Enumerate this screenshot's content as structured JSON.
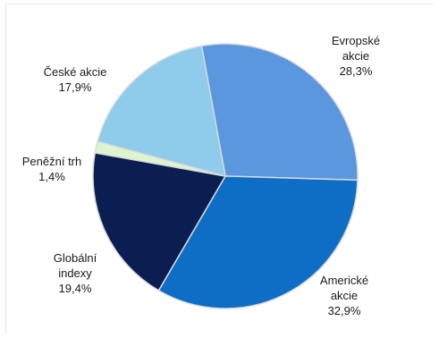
{
  "chart_data": {
    "type": "pie",
    "start_angle_deg": -10.3,
    "direction": "clockwise",
    "slices": [
      {
        "label_lines": [
          "Evropské",
          "akcie",
          "28,3%"
        ],
        "value": 28.3,
        "color": "#5A97DE"
      },
      {
        "label_lines": [
          "Americké",
          "akcie",
          "32,9%"
        ],
        "value": 32.9,
        "color": "#0E6EC6"
      },
      {
        "label_lines": [
          "Globální",
          "indexy",
          "19,4%"
        ],
        "value": 19.4,
        "color": "#0B1E52"
      },
      {
        "label_lines": [
          "Peněžní trh",
          "1,4%"
        ],
        "value": 1.4,
        "color": "#DDF5CD"
      },
      {
        "label_lines": [
          "České akcie",
          "17,9%"
        ],
        "value": 17.9,
        "color": "#8FCBEB"
      }
    ],
    "slice_border_color": "#d9d9d9",
    "legend": "none"
  }
}
